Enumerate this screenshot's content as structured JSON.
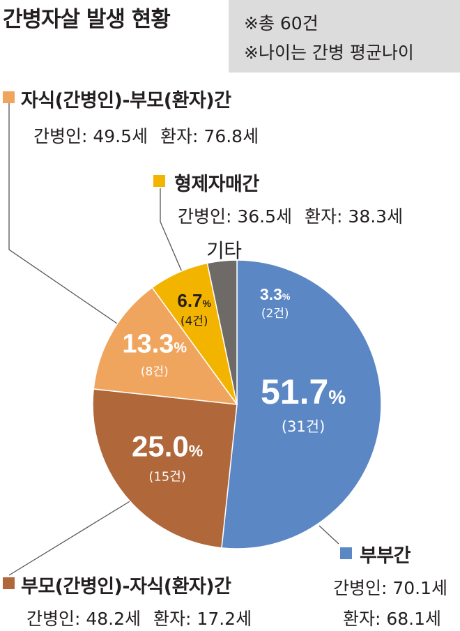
{
  "title": "간병자살 발생 현황",
  "notes": [
    "※총 60건",
    "※나이는 간병 평균나이"
  ],
  "colors": {
    "spouse": "#5b87c5",
    "parent_child": "#b0673a",
    "child_parent": "#f0a55e",
    "siblings": "#f3b400",
    "other": "#6e6a67",
    "note_bg": "#dcdcdc",
    "leader": "#555555"
  },
  "categories": {
    "child_parent": {
      "label": "자식(간병인)-부모(환자)간",
      "caregiver_age": "간병인: 49.5세",
      "patient_age": "환자: 76.8세"
    },
    "siblings": {
      "label": "형제자매간",
      "caregiver_age": "간병인: 36.5세",
      "patient_age": "환자: 38.3세"
    },
    "other": {
      "label": "기타"
    },
    "spouse": {
      "label": "부부간",
      "caregiver_age": "간병인: 70.1세",
      "patient_age": "환자: 68.1세"
    },
    "parent_child": {
      "label": "부모(간병인)-자식(환자)간",
      "caregiver_age": "간병인: 48.2세",
      "patient_age": "환자: 17.2세"
    }
  },
  "chart_data": {
    "type": "pie",
    "title": "간병자살 발생 현황",
    "total": 60,
    "start": "top, clockwise",
    "slices": [
      {
        "key": "spouse",
        "label": "부부간",
        "percent": 51.7,
        "percent_text": "51.7",
        "count": 31,
        "count_text": "(31건)",
        "color": "#5b87c5"
      },
      {
        "key": "parent_child",
        "label": "부모(간병인)-자식(환자)간",
        "percent": 25.0,
        "percent_text": "25.0",
        "count": 15,
        "count_text": "(15건)",
        "color": "#b0673a"
      },
      {
        "key": "child_parent",
        "label": "자식(간병인)-부모(환자)간",
        "percent": 13.3,
        "percent_text": "13.3",
        "count": 8,
        "count_text": "(8건)",
        "color": "#f0a55e"
      },
      {
        "key": "siblings",
        "label": "형제자매간",
        "percent": 6.7,
        "percent_text": "6.7",
        "count": 4,
        "count_text": "(4건)",
        "color": "#f3b400"
      },
      {
        "key": "other",
        "label": "기타",
        "percent": 3.3,
        "percent_text": "3.3",
        "count": 2,
        "count_text": "(2건)",
        "color": "#6e6a67"
      }
    ]
  }
}
